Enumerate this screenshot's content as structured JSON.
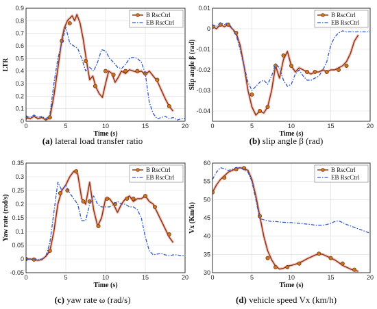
{
  "legend": {
    "b": "B RscCtrl",
    "eb": "EB RscCtrl"
  },
  "colors": {
    "b": "#8B3A12",
    "b_marker": "#C8781E",
    "b_halo": "#F2B8B8",
    "eb": "#2E58C8",
    "frame": "#000000"
  },
  "chart_data": [
    {
      "type": "line",
      "panel": "a",
      "caption": {
        "letter": "(a)",
        "text": " lateral load transfer ratio"
      },
      "xlabel": "Time (s)",
      "ylabel": "LTR",
      "xlim": [
        0,
        20
      ],
      "ylim": [
        0,
        0.9
      ],
      "xticks": [
        "0",
        "5",
        "10",
        "15",
        "20"
      ],
      "yticks": [
        "0",
        "0.1",
        "0.2",
        "0.3",
        "0.4",
        "0.5",
        "0.6",
        "0.7",
        "0.8",
        "0.9"
      ],
      "legend_position": "top-right",
      "grid": true,
      "series": [
        {
          "name": "B RscCtrl",
          "key": "b",
          "x": [
            0,
            0.5,
            1,
            1.5,
            2,
            2.5,
            3,
            3.5,
            4,
            4.5,
            4.8,
            5.2,
            5.5,
            5.8,
            6.1,
            6.4,
            6.8,
            7.2,
            7.6,
            8,
            8.4,
            8.8,
            9.2,
            9.6,
            10,
            10.4,
            10.8,
            11.2,
            11.6,
            12,
            12.5,
            13,
            13.5,
            14,
            14.5,
            15,
            15.5,
            16,
            16.5,
            17,
            17.5,
            18,
            18.5
          ],
          "y": [
            0.03,
            0.02,
            0.04,
            0.02,
            0.03,
            0.01,
            0.03,
            0.2,
            0.42,
            0.65,
            0.74,
            0.8,
            0.82,
            0.84,
            0.8,
            0.85,
            0.78,
            0.65,
            0.48,
            0.33,
            0.36,
            0.27,
            0.22,
            0.19,
            0.3,
            0.4,
            0.38,
            0.31,
            0.35,
            0.4,
            0.38,
            0.41,
            0.4,
            0.39,
            0.4,
            0.37,
            0.4,
            0.36,
            0.32,
            0.25,
            0.18,
            0.12,
            0.08
          ],
          "markers_x": [
            0,
            3,
            4.5,
            5.5,
            7.5,
            8.7,
            10,
            11,
            12.5,
            14,
            15,
            16.5,
            18
          ],
          "markers_y": [
            0.03,
            0.03,
            0.64,
            0.78,
            0.48,
            0.28,
            0.4,
            0.37,
            0.4,
            0.4,
            0.38,
            0.33,
            0.12
          ]
        },
        {
          "name": "EB RscCtrl",
          "key": "eb",
          "x": [
            0,
            0.5,
            1,
            1.5,
            2,
            2.5,
            3,
            3.5,
            4,
            4.5,
            5,
            5.5,
            6,
            6.5,
            7,
            7.5,
            8,
            8.5,
            9,
            9.5,
            10,
            10.5,
            11,
            11.5,
            12,
            12.5,
            13,
            13.5,
            14,
            14.5,
            15,
            15.5,
            16,
            16.5,
            17,
            17.5,
            18,
            18.5,
            19,
            19.5,
            20
          ],
          "y": [
            0.04,
            0.03,
            0.05,
            0.03,
            0.04,
            0.02,
            0.05,
            0.3,
            0.5,
            0.62,
            0.75,
            0.62,
            0.6,
            0.58,
            0.5,
            0.4,
            0.43,
            0.4,
            0.47,
            0.57,
            0.56,
            0.5,
            0.47,
            0.43,
            0.42,
            0.45,
            0.5,
            0.51,
            0.5,
            0.47,
            0.38,
            0.15,
            0.06,
            0.02,
            0.03,
            0.04,
            0.02,
            0.03,
            0.01,
            0.02,
            0.02
          ]
        }
      ]
    },
    {
      "type": "line",
      "panel": "b",
      "caption": {
        "letter": "(b)",
        "text": " slip angle β (rad)"
      },
      "xlabel": "Time (s)",
      "ylabel": "Slip angle β (rad)",
      "xlim": [
        0,
        20
      ],
      "ylim": [
        -0.045,
        0.01
      ],
      "xticks": [
        "0",
        "5",
        "10",
        "15",
        "20"
      ],
      "yticks": [
        "-0.04",
        "-0.03",
        "-0.02",
        "-0.01",
        "0",
        "0.01"
      ],
      "legend_position": "top-right",
      "grid": true,
      "series": [
        {
          "name": "B RscCtrl",
          "key": "b",
          "x": [
            0,
            0.5,
            1,
            1.5,
            2,
            2.5,
            3,
            3.5,
            4,
            4.5,
            5,
            5.5,
            6,
            6.5,
            7,
            7.5,
            8,
            8.5,
            9,
            9.5,
            10,
            10.5,
            11,
            11.5,
            12,
            12.5,
            13,
            13.5,
            14,
            14.5,
            15,
            15.5,
            16,
            16.5,
            17,
            17.5,
            18,
            18.5
          ],
          "y": [
            0.001,
            0.0,
            0.002,
            0.001,
            0.002,
            0.0,
            -0.002,
            -0.008,
            -0.018,
            -0.03,
            -0.038,
            -0.042,
            -0.04,
            -0.041,
            -0.038,
            -0.03,
            -0.018,
            -0.024,
            -0.015,
            -0.011,
            -0.018,
            -0.021,
            -0.019,
            -0.02,
            -0.021,
            -0.022,
            -0.021,
            -0.021,
            -0.02,
            -0.021,
            -0.02,
            -0.02,
            -0.019,
            -0.018,
            -0.016,
            -0.012,
            -0.006,
            -0.003
          ],
          "markers_x": [
            0,
            1,
            2,
            3,
            5,
            6,
            7,
            8,
            9,
            10,
            12,
            13,
            14.5,
            16,
            17
          ],
          "markers_y": [
            0.001,
            0.002,
            0.002,
            -0.002,
            -0.032,
            -0.04,
            -0.038,
            -0.018,
            -0.013,
            -0.018,
            -0.021,
            -0.021,
            -0.021,
            -0.02,
            -0.018
          ]
        },
        {
          "name": "EB RscCtrl",
          "key": "eb",
          "x": [
            0,
            0.5,
            1,
            1.5,
            2,
            2.5,
            3,
            3.5,
            4,
            4.5,
            5,
            5.5,
            6,
            6.5,
            7,
            7.5,
            8,
            8.5,
            9,
            9.5,
            10,
            10.5,
            11,
            11.5,
            12,
            12.5,
            13,
            13.5,
            14,
            14.5,
            15,
            15.5,
            16,
            16.5,
            17,
            17.5,
            18,
            18.5,
            19,
            19.5,
            20
          ],
          "y": [
            0.002,
            0.001,
            0.003,
            0.002,
            0.003,
            0.0,
            -0.003,
            -0.01,
            -0.018,
            -0.026,
            -0.03,
            -0.028,
            -0.026,
            -0.025,
            -0.027,
            -0.023,
            -0.017,
            -0.019,
            -0.025,
            -0.028,
            -0.027,
            -0.022,
            -0.02,
            -0.023,
            -0.025,
            -0.025,
            -0.024,
            -0.023,
            -0.02,
            -0.016,
            -0.008,
            -0.004,
            -0.002,
            -0.001,
            -0.0015,
            -0.0015,
            -0.0015,
            -0.0015,
            -0.0015,
            -0.0015,
            -0.0015
          ]
        }
      ]
    },
    {
      "type": "line",
      "panel": "c",
      "caption": {
        "letter": "(c)",
        "text": " yaw rate ω (rad/s)"
      },
      "xlabel": "Time (s)",
      "ylabel": "Yaw rate (rad/s)",
      "xlim": [
        0,
        20
      ],
      "ylim": [
        -0.05,
        0.35
      ],
      "xticks": [
        "0",
        "5",
        "10",
        "15",
        "20"
      ],
      "yticks": [
        "-0.05",
        "0",
        "0.05",
        "0.1",
        "0.15",
        "0.2",
        "0.25",
        "0.3",
        "0.35"
      ],
      "legend_position": "top-right",
      "grid": true,
      "series": [
        {
          "name": "B RscCtrl",
          "key": "b",
          "x": [
            0,
            0.5,
            1,
            1.5,
            2,
            2.5,
            3,
            3.5,
            4,
            4.5,
            5,
            5.5,
            6,
            6.5,
            7,
            7.5,
            8,
            8.5,
            9,
            9.5,
            10,
            10.5,
            11,
            11.5,
            12,
            12.5,
            13,
            13.5,
            14,
            14.5,
            15,
            15.5,
            16,
            16.5,
            17,
            17.5,
            18,
            18.5
          ],
          "y": [
            0,
            0,
            -0.002,
            -0.005,
            -0.002,
            0.01,
            0.03,
            0.1,
            0.2,
            0.25,
            0.27,
            0.3,
            0.32,
            0.31,
            0.22,
            0.2,
            0.28,
            0.18,
            0.12,
            0.15,
            0.22,
            0.22,
            0.2,
            0.17,
            0.2,
            0.22,
            0.23,
            0.21,
            0.22,
            0.22,
            0.23,
            0.21,
            0.2,
            0.17,
            0.14,
            0.11,
            0.08,
            0.06
          ],
          "markers_x": [
            0,
            1,
            3,
            4.3,
            5.2,
            6.3,
            7.2,
            8,
            9.1,
            10.2,
            11.2,
            12.7,
            13.5,
            15,
            16.2,
            18
          ],
          "markers_y": [
            0,
            -0.002,
            0.03,
            0.24,
            0.25,
            0.32,
            0.21,
            0.21,
            0.12,
            0.22,
            0.2,
            0.22,
            0.22,
            0.23,
            0.19,
            0.09
          ]
        },
        {
          "name": "EB RscCtrl",
          "key": "eb",
          "x": [
            0,
            0.5,
            1,
            1.5,
            2,
            2.5,
            3,
            3.5,
            4,
            4.5,
            5,
            5.5,
            6,
            6.5,
            7,
            7.5,
            8,
            8.5,
            9,
            9.5,
            10,
            10.5,
            11,
            11.5,
            12,
            12.5,
            13,
            13.5,
            14,
            14.5,
            15,
            15.5,
            16,
            16.5,
            17,
            17.5,
            18,
            18.5,
            19,
            19.5,
            20
          ],
          "y": [
            0,
            -0.002,
            0,
            -0.003,
            0,
            0.01,
            0.06,
            0.17,
            0.28,
            0.25,
            0.27,
            0.24,
            0.22,
            0.2,
            0.14,
            0.14,
            0.2,
            0.23,
            0.2,
            0.19,
            0.19,
            0.19,
            0.2,
            0.21,
            0.2,
            0.2,
            0.19,
            0.19,
            0.18,
            0.15,
            0.08,
            0.03,
            0.015,
            0.018,
            0.02,
            0.015,
            0.012,
            0.015,
            0.015,
            0.012,
            0.012
          ]
        }
      ]
    },
    {
      "type": "line",
      "panel": "d",
      "caption": {
        "letter": "(d)",
        "text": " vehicle speed Vx (km/h)"
      },
      "xlabel": "Time (s)",
      "ylabel": "Vx (Km/h)",
      "xlim": [
        0,
        20
      ],
      "ylim": [
        30,
        60
      ],
      "xticks": [
        "0",
        "5",
        "10",
        "15",
        "20"
      ],
      "yticks": [
        "30",
        "35",
        "40",
        "45",
        "50",
        "55",
        "60"
      ],
      "legend_position": "top-right",
      "grid": true,
      "series": [
        {
          "name": "B RscCtrl",
          "key": "b",
          "x": [
            0,
            0.5,
            1,
            1.5,
            2,
            2.5,
            3,
            3.5,
            4,
            4.5,
            5,
            5.5,
            6,
            6.5,
            7,
            7.5,
            8,
            8.5,
            9,
            9.5,
            10,
            10.5,
            11,
            11.5,
            12,
            12.5,
            13,
            13.5,
            14,
            14.5,
            15,
            15.5,
            16,
            16.5,
            17,
            17.5,
            18,
            18.5
          ],
          "y": [
            52,
            54,
            55.5,
            56.5,
            57.5,
            58,
            58.5,
            58.7,
            58.5,
            58,
            55.5,
            51,
            45.5,
            40,
            36,
            33.5,
            31.8,
            31,
            31.2,
            31.8,
            32,
            32.3,
            32.7,
            33.2,
            33.8,
            34.3,
            34.8,
            35.2,
            35,
            34.5,
            34,
            33.5,
            32.8,
            32,
            31.5,
            31,
            30.6,
            30.4
          ],
          "markers_x": [
            0,
            1.5,
            3,
            4,
            6,
            7,
            8,
            9.5,
            11,
            13.5,
            15,
            16.5,
            18
          ],
          "markers_y": [
            52,
            56,
            58.3,
            58.6,
            45.5,
            34,
            31.5,
            31.5,
            32.5,
            35.2,
            34,
            32.5,
            30.8
          ]
        },
        {
          "name": "EB RscCtrl",
          "key": "eb",
          "x": [
            0,
            0.5,
            1,
            1.5,
            2,
            2.5,
            3,
            3.5,
            4,
            4.5,
            5,
            5.5,
            6,
            6.5,
            7,
            7.5,
            8,
            8.5,
            9,
            9.5,
            10,
            10.5,
            11,
            11.5,
            12,
            12.5,
            13,
            13.5,
            14,
            14.5,
            15,
            15.5,
            16,
            16.5,
            17,
            17.5,
            18,
            18.5,
            19,
            19.5,
            20
          ],
          "y": [
            55.5,
            57.5,
            58.7,
            58.5,
            58,
            58.3,
            58.8,
            58.7,
            58.2,
            57.5,
            55,
            50,
            44.8,
            44.5,
            44.2,
            44,
            44,
            43.9,
            43.8,
            43.7,
            43.7,
            43.6,
            43.5,
            43.4,
            43.3,
            43.2,
            43,
            43,
            43,
            43.2,
            43.5,
            44,
            44.2,
            43.7,
            43.2,
            42.8,
            42.4,
            42,
            41.6,
            41.2,
            40.8
          ]
        }
      ]
    }
  ]
}
